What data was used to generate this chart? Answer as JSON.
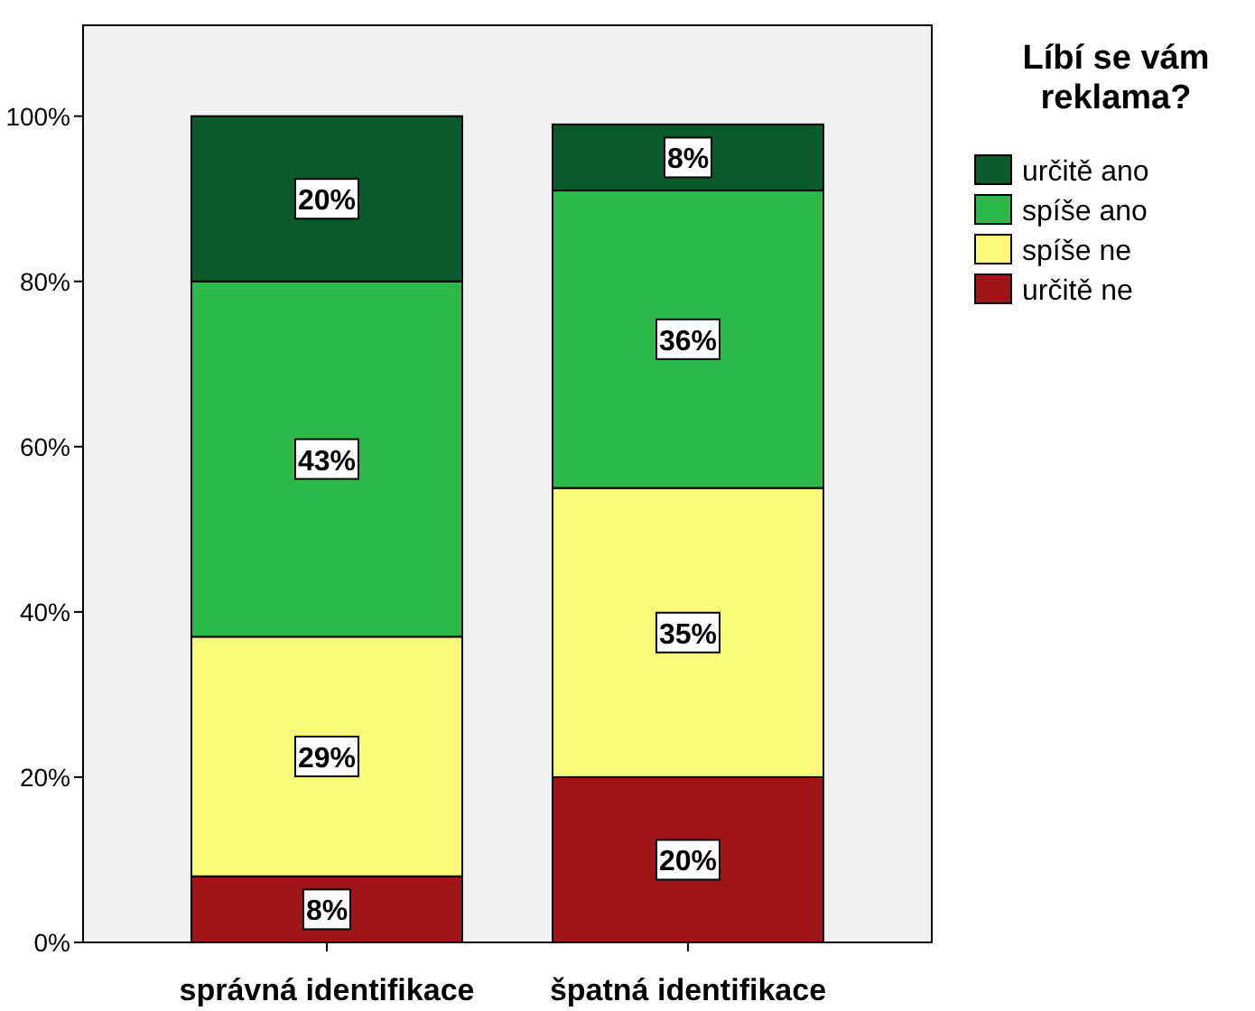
{
  "chart_data": {
    "type": "bar",
    "stacked": true,
    "legend_title": "Líbí se vám reklama?",
    "legend": "top right",
    "grid": false,
    "categories": [
      "správná identifikace",
      "špatná identifikace"
    ],
    "ylim": [
      0,
      111
    ],
    "yticks": [
      {
        "value": 0,
        "label": "0%"
      },
      {
        "value": 20,
        "label": "20%"
      },
      {
        "value": 40,
        "label": "40%"
      },
      {
        "value": 60,
        "label": "60%"
      },
      {
        "value": 80,
        "label": "80%"
      },
      {
        "value": 100,
        "label": "100%"
      }
    ],
    "series": [
      {
        "name": "určitě ne",
        "color": "#a01519",
        "values": [
          8,
          20
        ],
        "value_labels": [
          "8%",
          "20%"
        ]
      },
      {
        "name": "spíše ne",
        "color": "#f8f87a",
        "values": [
          29,
          35
        ],
        "value_labels": [
          "29%",
          "35%"
        ]
      },
      {
        "name": "spíše ano",
        "color": "#2db84b",
        "values": [
          43,
          36
        ],
        "value_labels": [
          "43%",
          "36%"
        ]
      },
      {
        "name": "určitě ano",
        "color": "#0b5a2b",
        "values": [
          20,
          8
        ],
        "value_labels": [
          "20%",
          "8%"
        ]
      }
    ]
  }
}
